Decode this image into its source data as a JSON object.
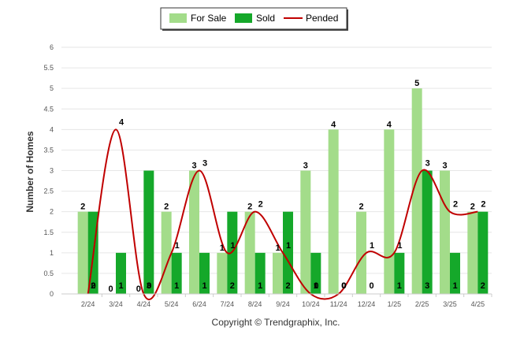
{
  "chart_data": {
    "type": "bar",
    "categories": [
      "2/24",
      "3/24",
      "4/24",
      "5/24",
      "6/24",
      "7/24",
      "8/24",
      "9/24",
      "10/24",
      "11/24",
      "12/24",
      "1/25",
      "2/25",
      "3/25",
      "4/25"
    ],
    "series": [
      {
        "name": "For Sale",
        "type": "bar",
        "color": "#a3dc8a",
        "values": [
          2,
          0,
          0,
          2,
          3,
          1,
          2,
          1,
          3,
          4,
          2,
          4,
          5,
          3,
          2
        ]
      },
      {
        "name": "Sold",
        "type": "bar",
        "color": "#15a82a",
        "values": [
          2,
          1,
          3,
          1,
          1,
          2,
          1,
          2,
          1,
          0,
          0,
          1,
          3,
          1,
          2
        ]
      },
      {
        "name": "Pended",
        "type": "line",
        "color": "#c00000",
        "values": [
          0,
          4,
          0,
          1,
          3,
          1,
          2,
          1,
          0,
          0,
          1,
          1,
          3,
          2,
          2
        ]
      }
    ],
    "ylabel": "Number of Homes",
    "ylim": [
      0,
      6
    ],
    "yticks": [
      "0",
      "0.5",
      "1",
      "1.5",
      "2",
      "2.5",
      "3",
      "3.5",
      "4",
      "4.5",
      "5",
      "5.5",
      "6"
    ],
    "legend_position": "top-center",
    "grid": true
  },
  "footer": {
    "credit": "Copyright © Trendgraphix, Inc."
  }
}
